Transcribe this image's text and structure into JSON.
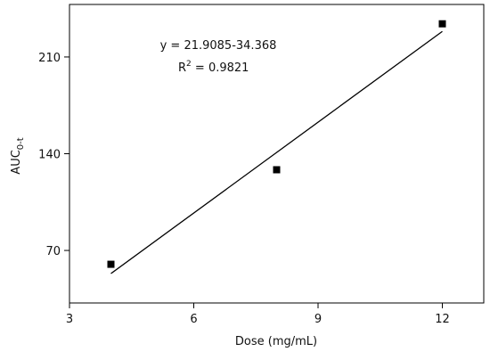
{
  "chart_data": {
    "type": "scatter",
    "x_label": "Dose  (mg/mL)",
    "y_label": {
      "text": "AUC",
      "sub": "0-t"
    },
    "xlim": [
      3,
      13
    ],
    "xticks": [
      3,
      6,
      9,
      12
    ],
    "ylim": [
      32,
      248
    ],
    "yticks": [
      70,
      140,
      210
    ],
    "series": [
      {
        "kind": "points",
        "color": "#000000",
        "x": [
          4,
          8,
          12
        ],
        "values": [
          60,
          128.4,
          234
        ]
      },
      {
        "kind": "line",
        "color": "#000000",
        "x": [
          4,
          12
        ],
        "values": [
          53.3,
          228.5
        ]
      }
    ],
    "annotations": [
      {
        "text": "y = 21.9085-34.368"
      },
      {
        "base": "R",
        "sup": "2",
        "text": " =  0.9821"
      }
    ]
  }
}
